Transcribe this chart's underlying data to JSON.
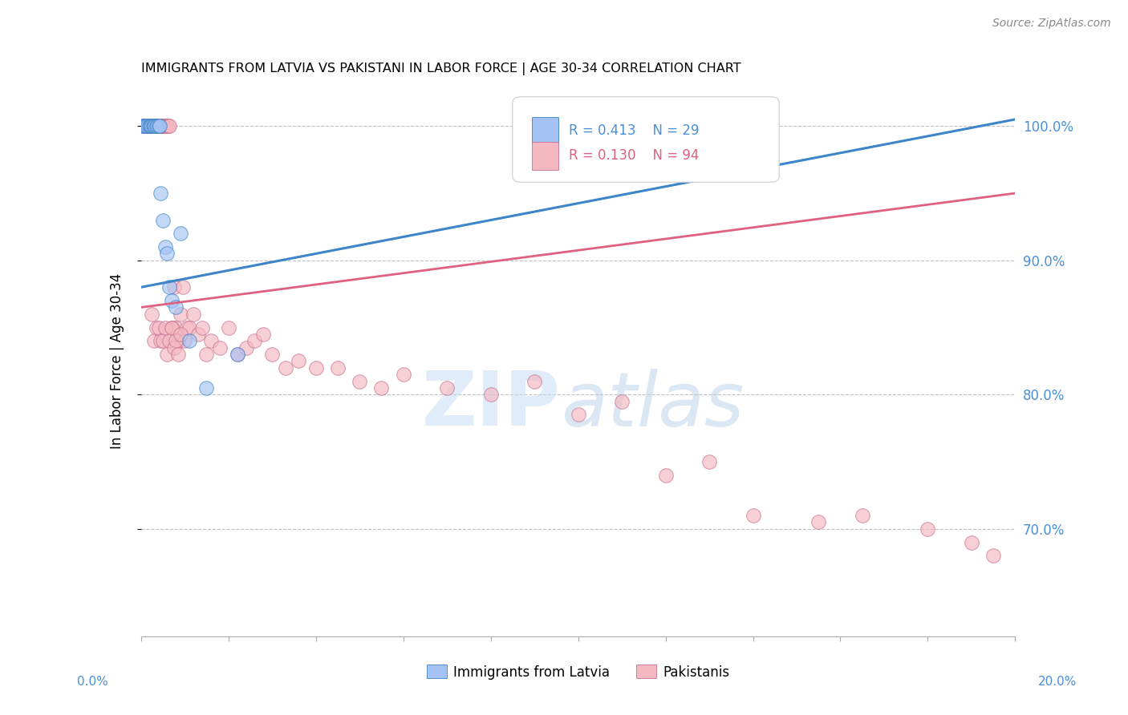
{
  "title": "IMMIGRANTS FROM LATVIA VS PAKISTANI IN LABOR FORCE | AGE 30-34 CORRELATION CHART",
  "source": "Source: ZipAtlas.com",
  "ylabel": "In Labor Force | Age 30-34",
  "xmin": 0.0,
  "xmax": 20.0,
  "ymin": 62.0,
  "ymax": 103.0,
  "ytick_vals": [
    70.0,
    80.0,
    90.0,
    100.0
  ],
  "ytick_labels": [
    "70.0%",
    "80.0%",
    "90.0%",
    "100.0%"
  ],
  "color_latvia": "#a4c2f4",
  "color_pakistan": "#f4b8c1",
  "color_line_latvia": "#3d85c8",
  "color_line_pakistan": "#e06080",
  "color_axis_text": "#4a90d9",
  "latvia_trend": [
    88.0,
    100.5
  ],
  "pakistan_trend": [
    86.5,
    95.0
  ],
  "latvia_x": [
    0.05,
    0.08,
    0.1,
    0.12,
    0.15,
    0.18,
    0.2,
    0.22,
    0.25,
    0.28,
    0.3,
    0.32,
    0.35,
    0.38,
    0.4,
    0.42,
    0.45,
    0.5,
    0.55,
    0.6,
    0.65,
    0.7,
    0.8,
    0.9,
    1.1,
    1.5,
    2.2,
    10.5,
    13.8
  ],
  "latvia_y": [
    100.0,
    100.0,
    100.0,
    100.0,
    100.0,
    100.0,
    100.0,
    100.0,
    100.0,
    100.0,
    100.0,
    100.0,
    100.0,
    100.0,
    100.0,
    100.0,
    95.0,
    93.0,
    91.0,
    90.5,
    88.0,
    87.0,
    86.5,
    92.0,
    84.0,
    80.5,
    83.0,
    100.0,
    100.0
  ],
  "pakistan_x": [
    0.05,
    0.07,
    0.08,
    0.1,
    0.12,
    0.13,
    0.15,
    0.15,
    0.17,
    0.18,
    0.2,
    0.2,
    0.22,
    0.23,
    0.25,
    0.25,
    0.27,
    0.28,
    0.3,
    0.3,
    0.32,
    0.33,
    0.35,
    0.35,
    0.38,
    0.4,
    0.4,
    0.42,
    0.45,
    0.45,
    0.48,
    0.5,
    0.52,
    0.55,
    0.58,
    0.6,
    0.62,
    0.65,
    0.7,
    0.72,
    0.75,
    0.8,
    0.85,
    0.9,
    0.95,
    1.0,
    1.05,
    1.1,
    1.2,
    1.3,
    1.4,
    1.5,
    1.6,
    1.8,
    2.0,
    2.2,
    2.4,
    2.6,
    2.8,
    3.0,
    3.3,
    3.6,
    4.0,
    4.5,
    5.0,
    5.5,
    6.0,
    7.0,
    8.0,
    9.0,
    10.0,
    11.0,
    12.0,
    13.0,
    14.0,
    15.5,
    16.5,
    18.0,
    19.0,
    19.5,
    0.25,
    0.3,
    0.35,
    0.4,
    0.45,
    0.5,
    0.55,
    0.6,
    0.65,
    0.7,
    0.75,
    0.8,
    0.85,
    0.9
  ],
  "pakistan_y": [
    100.0,
    100.0,
    100.0,
    100.0,
    100.0,
    100.0,
    100.0,
    100.0,
    100.0,
    100.0,
    100.0,
    100.0,
    100.0,
    100.0,
    100.0,
    100.0,
    100.0,
    100.0,
    100.0,
    100.0,
    100.0,
    100.0,
    100.0,
    100.0,
    100.0,
    100.0,
    100.0,
    100.0,
    100.0,
    100.0,
    100.0,
    100.0,
    100.0,
    100.0,
    100.0,
    100.0,
    100.0,
    100.0,
    85.0,
    85.0,
    88.0,
    85.0,
    84.0,
    86.0,
    88.0,
    84.0,
    85.0,
    85.0,
    86.0,
    84.5,
    85.0,
    83.0,
    84.0,
    83.5,
    85.0,
    83.0,
    83.5,
    84.0,
    84.5,
    83.0,
    82.0,
    82.5,
    82.0,
    82.0,
    81.0,
    80.5,
    81.5,
    80.5,
    80.0,
    81.0,
    78.5,
    79.5,
    74.0,
    75.0,
    71.0,
    70.5,
    71.0,
    70.0,
    69.0,
    68.0,
    86.0,
    84.0,
    85.0,
    85.0,
    84.0,
    84.0,
    85.0,
    83.0,
    84.0,
    85.0,
    83.5,
    84.0,
    83.0,
    84.5
  ]
}
